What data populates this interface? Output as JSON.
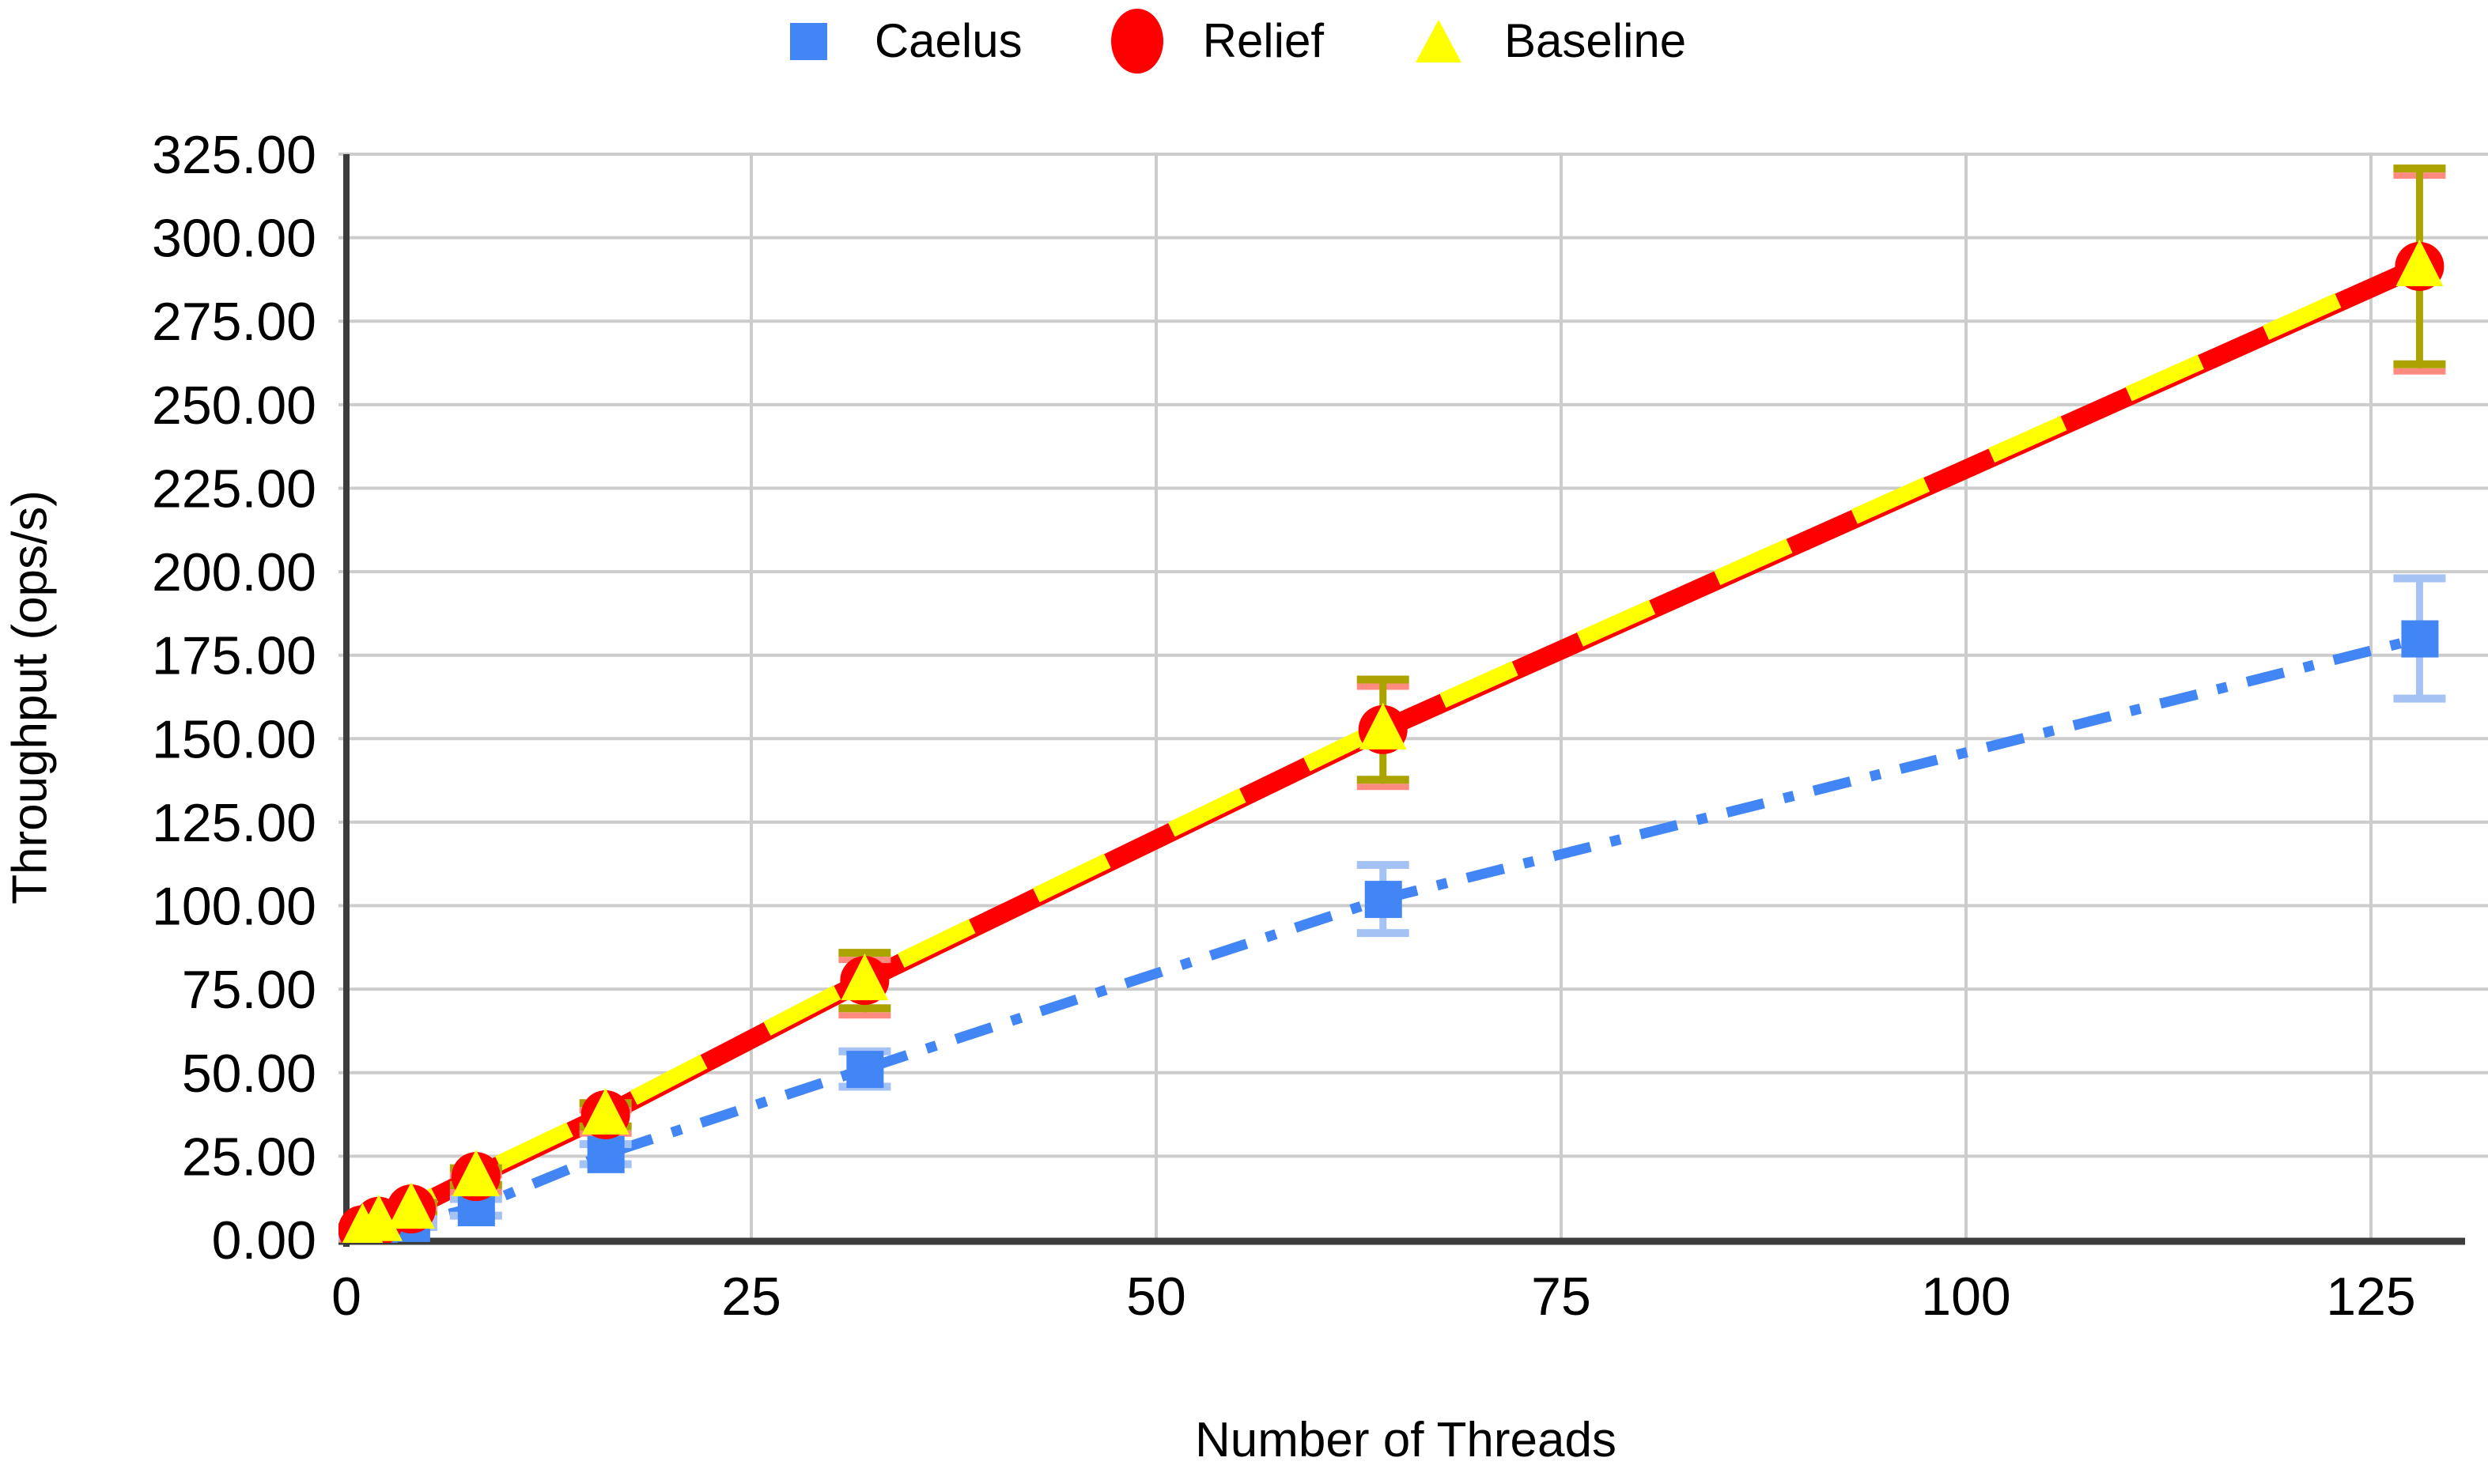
{
  "chart_data": {
    "type": "line",
    "title": "",
    "xlabel": "Number of Threads",
    "ylabel": "Throughput (ops/s)",
    "x": [
      1,
      2,
      4,
      8,
      16,
      32,
      64,
      128
    ],
    "xlim": [
      0,
      131
    ],
    "ylim": [
      0,
      325
    ],
    "x_ticks": [
      0,
      25,
      50,
      75,
      100,
      125
    ],
    "x_tick_labels": [
      "0",
      "25",
      "50",
      "75",
      "100",
      "125"
    ],
    "y_ticks": [
      0,
      25,
      50,
      75,
      100,
      125,
      150,
      175,
      200,
      225,
      250,
      275,
      300,
      325
    ],
    "y_tick_labels": [
      "0.00",
      "25.00",
      "50.00",
      "75.00",
      "100.00",
      "125.00",
      "150.00",
      "175.00",
      "200.00",
      "225.00",
      "250.00",
      "275.00",
      "300.00",
      "325.00"
    ],
    "grid": true,
    "legend_position": "top-center",
    "gridline_color": "#CCCCCC",
    "axis_color": "#3C3C3C",
    "series": [
      {
        "name": "Caelus",
        "marker": "square",
        "line_style": "dash-dot",
        "color": "#4285F4",
        "error_color": "#A4C2F4",
        "values": [
          1.3,
          2.7,
          5.0,
          9.7,
          25.6,
          51.1,
          102.0,
          180.0
        ],
        "error": [
          0.5,
          0.8,
          1.2,
          2.5,
          3.0,
          5.3,
          10.2,
          18.0
        ]
      },
      {
        "name": "Relief",
        "marker": "circle",
        "line_style": "solid-thick",
        "color": "#FF0000",
        "error_color": "#FF8A80",
        "values": [
          3.0,
          5.5,
          9.2,
          18.9,
          37.4,
          77.6,
          152.7,
          291.4
        ],
        "error": [
          0.8,
          1.2,
          1.8,
          2.5,
          3.5,
          8.3,
          15.0,
          29.3
        ]
      },
      {
        "name": "Baseline",
        "marker": "triangle",
        "line_style": "dashed-thick",
        "color": "#FFFF00",
        "error_color": "#ABA400",
        "values": [
          3.0,
          5.5,
          9.2,
          18.9,
          37.4,
          77.6,
          152.7,
          291.4
        ],
        "error": [
          0.8,
          1.2,
          1.8,
          2.5,
          3.5,
          8.3,
          15.0,
          29.3
        ]
      }
    ]
  }
}
